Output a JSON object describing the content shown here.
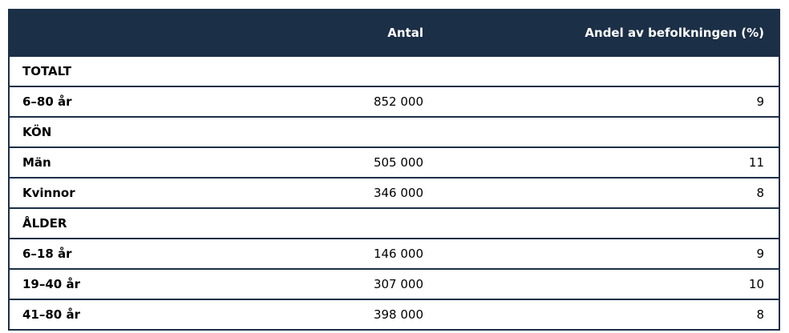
{
  "header": {
    "col1": "",
    "col2": "Antal",
    "col3": "Andel av befolkningen (%)"
  },
  "rows": [
    {
      "label": "TOTALT",
      "antal": "",
      "andel": "",
      "section": true
    },
    {
      "label": "6–80 år",
      "antal": "852 000",
      "andel": "9"
    },
    {
      "label": "KÖN",
      "antal": "",
      "andel": "",
      "section": true
    },
    {
      "label": "Män",
      "antal": "505 000",
      "andel": "11"
    },
    {
      "label": "Kvinnor",
      "antal": "346 000",
      "andel": "8"
    },
    {
      "label": "ÅLDER",
      "antal": "",
      "andel": "",
      "section": true
    },
    {
      "label": "6–18 år",
      "antal": "146 000",
      "andel": "9"
    },
    {
      "label": "19–40 år",
      "antal": "307 000",
      "andel": "10"
    },
    {
      "label": "41–80 år",
      "antal": "398 000",
      "andel": "8"
    }
  ],
  "colors": {
    "header_bg": "#1b2f46",
    "border": "#1b2f46"
  }
}
